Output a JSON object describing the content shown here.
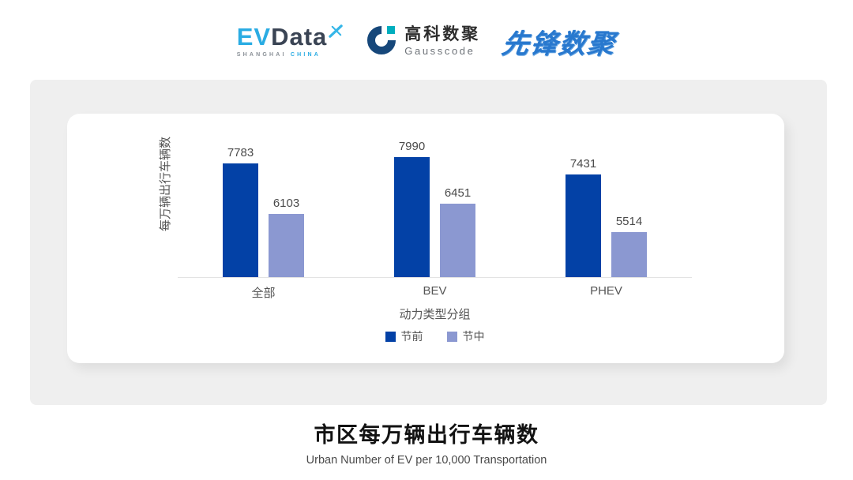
{
  "header": {
    "evdata": {
      "ev": "EV",
      "data": "Data",
      "sub_shanghai": "SHANGHAI",
      "sub_china": "CHINA"
    },
    "gausscode": {
      "cn": "高科数聚",
      "en": "Gausscode"
    },
    "pioneer": {
      "text": "先锋数聚"
    }
  },
  "chart_data": {
    "type": "bar",
    "categories": [
      "全部",
      "BEV",
      "PHEV"
    ],
    "series": [
      {
        "name": "节前",
        "color": "#0341A6",
        "values": [
          7783,
          7990,
          7431
        ]
      },
      {
        "name": "节中",
        "color": "#8B98D1",
        "values": [
          6103,
          6451,
          5514
        ]
      }
    ],
    "xlabel": "动力类型分组",
    "ylabel": "每万辆出行车辆数",
    "ylim": [
      4000,
      9000
    ],
    "grid": false,
    "legend_position": "bottom",
    "value_labels": true
  },
  "footer": {
    "title": "市区每万辆出行车辆数",
    "subtitle": "Urban Number of EV per 10,000 Transportation"
  },
  "colors": {
    "series_pre_holiday": "#0341A6",
    "series_mid_holiday": "#8B98D1",
    "panel_bg": "#EFEFEF",
    "evdata_blue": "#2AACE3",
    "evdata_dark": "#3A4454",
    "gausscode_dark": "#16477A",
    "gausscode_teal": "#00AEBE",
    "pioneer_blue": "#2878CE"
  }
}
